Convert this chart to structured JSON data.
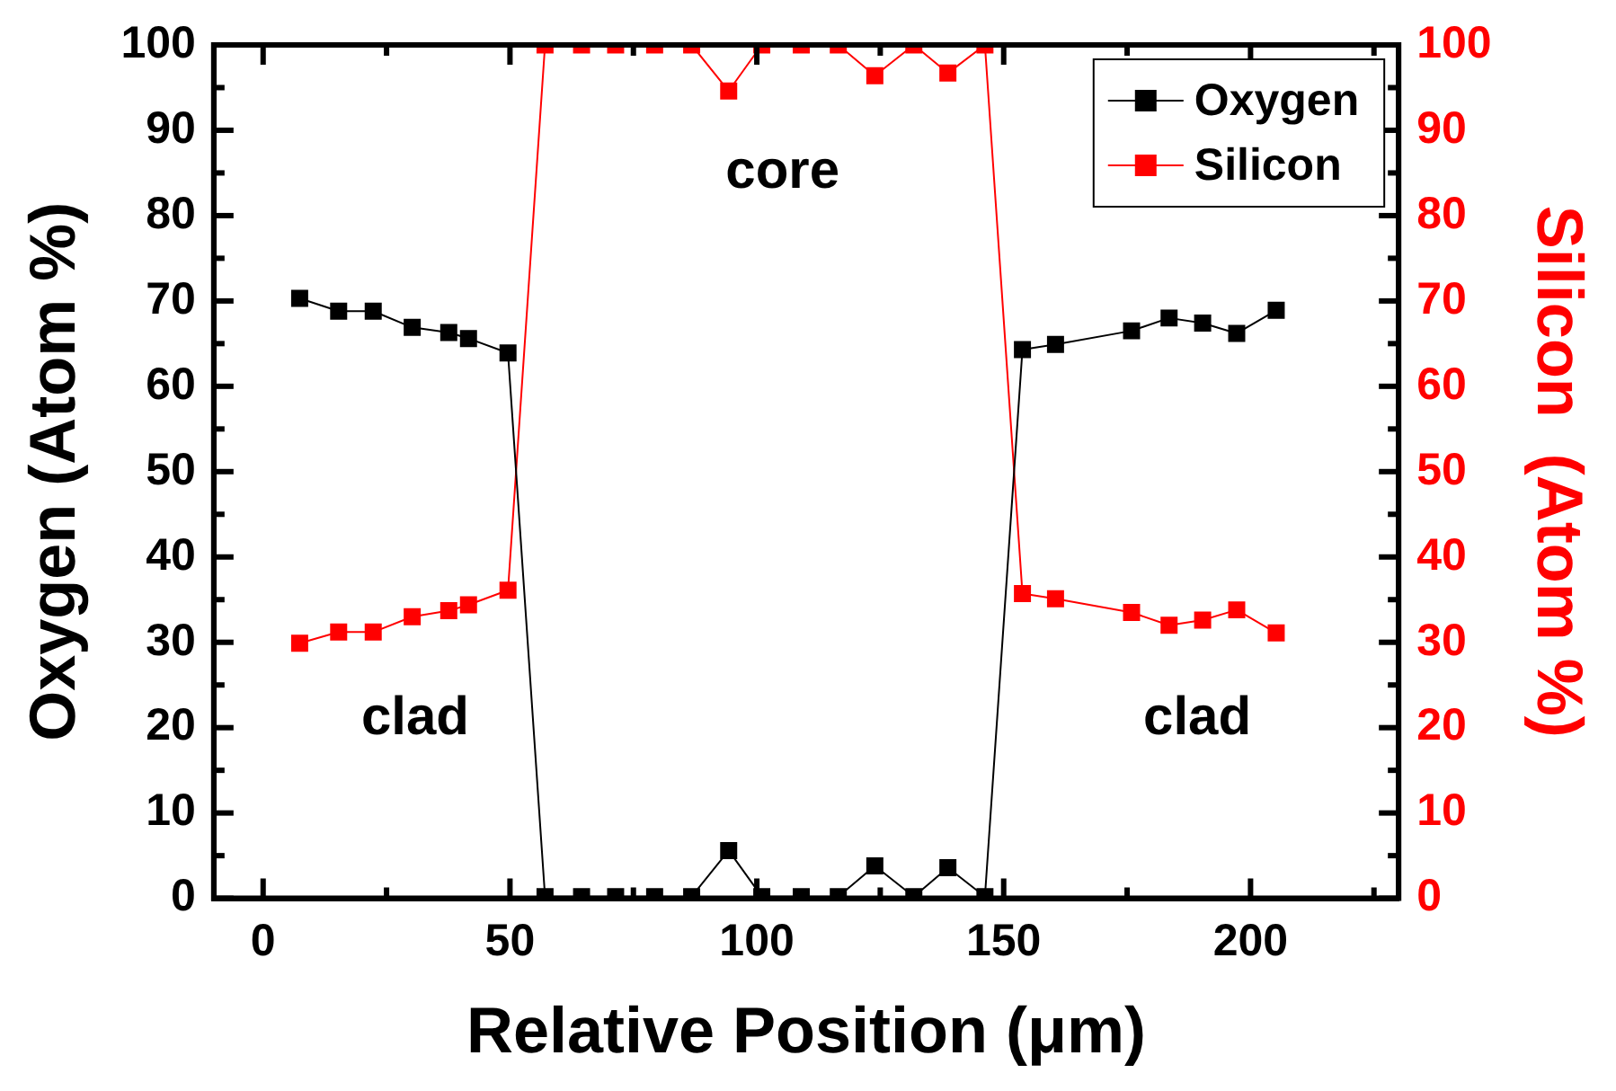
{
  "chart_data": {
    "type": "line",
    "xlabel": "Relative Position (μm)",
    "ylabel": "Oxygen (Atom %)",
    "y2label": "Silicon  (Atom %)",
    "xlim": [
      -10,
      230
    ],
    "xticks": [
      0,
      {
        "value": 25,
        "label": null
      },
      50,
      {
        "value": 75,
        "label": null
      },
      100,
      {
        "value": 125,
        "label": null
      },
      150,
      {
        "value": 175,
        "label": null
      },
      200,
      {
        "value": 225,
        "label": null
      }
    ],
    "ylim": [
      0,
      100
    ],
    "yticks": [
      0,
      {
        "value": 5,
        "label": null
      },
      10,
      {
        "value": 15,
        "label": null
      },
      20,
      {
        "value": 25,
        "label": null
      },
      30,
      {
        "value": 35,
        "label": null
      },
      40,
      {
        "value": 45,
        "label": null
      },
      50,
      {
        "value": 55,
        "label": null
      },
      60,
      {
        "value": 65,
        "label": null
      },
      70,
      {
        "value": 75,
        "label": null
      },
      80,
      {
        "value": 85,
        "label": null
      },
      90,
      {
        "value": 95,
        "label": null
      },
      100
    ],
    "y2lim": [
      0,
      100
    ],
    "y2ticks": [
      0,
      {
        "value": 5,
        "label": null
      },
      10,
      {
        "value": 15,
        "label": null
      },
      20,
      {
        "value": 25,
        "label": null
      },
      30,
      {
        "value": 35,
        "label": null
      },
      40,
      {
        "value": 45,
        "label": null
      },
      50,
      {
        "value": 55,
        "label": null
      },
      60,
      {
        "value": 65,
        "label": null
      },
      70,
      {
        "value": 75,
        "label": null
      },
      80,
      {
        "value": 85,
        "label": null
      },
      90,
      {
        "value": 95,
        "label": null
      },
      100
    ],
    "x": [
      7.4,
      15.3,
      22.3,
      30.2,
      37.6,
      41.6,
      49.6,
      57.1,
      64.5,
      71.4,
      79.3,
      86.8,
      94.3,
      101.0,
      109.0,
      116.5,
      123.9,
      131.8,
      138.7,
      146.2,
      153.8,
      160.5,
      175.9,
      183.5,
      190.3,
      197.2,
      205.2
    ],
    "series": [
      {
        "name": "Oxygen",
        "color": "#000000",
        "values": [
          70.3,
          68.8,
          68.8,
          66.9,
          66.3,
          65.6,
          63.9,
          0.2,
          0.2,
          0.2,
          0.2,
          0.2,
          5.6,
          0.2,
          0.2,
          0.2,
          3.8,
          0.2,
          3.6,
          0.2,
          64.3,
          64.9,
          66.5,
          68.0,
          67.4,
          66.2,
          68.9
        ]
      },
      {
        "name": "Silicon",
        "color": "#ff0000",
        "axis": "y2",
        "values": [
          29.9,
          31.2,
          31.2,
          33.0,
          33.7,
          34.4,
          36.1,
          100,
          100,
          100,
          100,
          100,
          94.6,
          100,
          100,
          100,
          96.4,
          100,
          96.7,
          100,
          35.7,
          35.1,
          33.5,
          32.0,
          32.6,
          33.8,
          31.1
        ]
      }
    ],
    "marker": "square",
    "line_style": "solid",
    "grid": false,
    "legend": "top right",
    "annotations": [
      "core",
      "clad",
      "clad"
    ]
  }
}
